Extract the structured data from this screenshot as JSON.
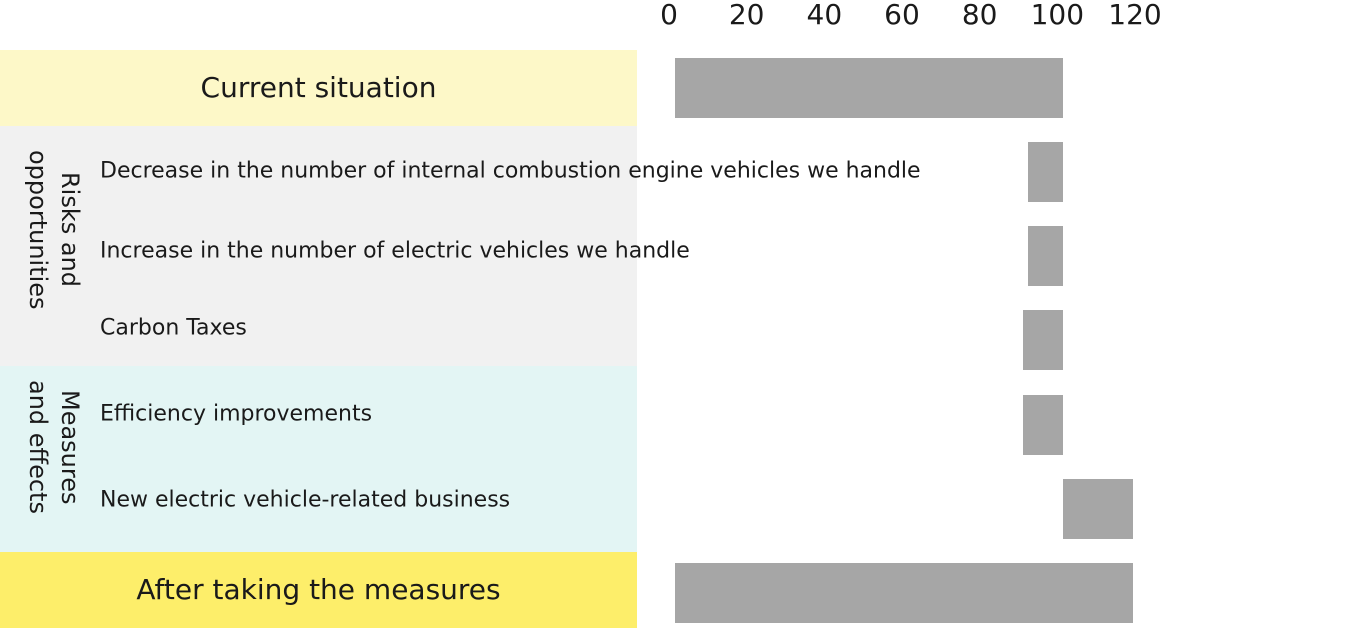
{
  "chart_data": {
    "type": "bar",
    "orientation": "horizontal",
    "variant": "waterfall",
    "x_ticks": [
      "0",
      "20",
      "40",
      "60",
      "80",
      "100",
      "120"
    ],
    "xlim": [
      0,
      120
    ],
    "grid": false,
    "bar_color": "#a6a6a6",
    "rows": [
      {
        "label": "Current situation",
        "start": 0,
        "end": 100
      },
      {
        "label": "Decrease in the number of internal combustion engine vehicles we handle",
        "start": 91,
        "end": 100
      },
      {
        "label": "Increase in the number of electric vehicles we handle",
        "start": 91,
        "end": 100
      },
      {
        "label": "Carbon Taxes",
        "start": 89.5,
        "end": 100
      },
      {
        "label": "Efficiency improvements",
        "start": 89.5,
        "end": 100
      },
      {
        "label": "New electric vehicle-related business",
        "start": 100,
        "end": 118
      },
      {
        "label": "After taking the measures",
        "start": 0,
        "end": 118
      }
    ],
    "groups": [
      {
        "label": "Risks and\nopportunities",
        "color": "#f1f1f1"
      },
      {
        "label": "Measures\nand effects",
        "color": "#e3f5f4"
      }
    ],
    "band_colors": {
      "current": "#fdf8c8",
      "after": "#fdee6a"
    }
  }
}
